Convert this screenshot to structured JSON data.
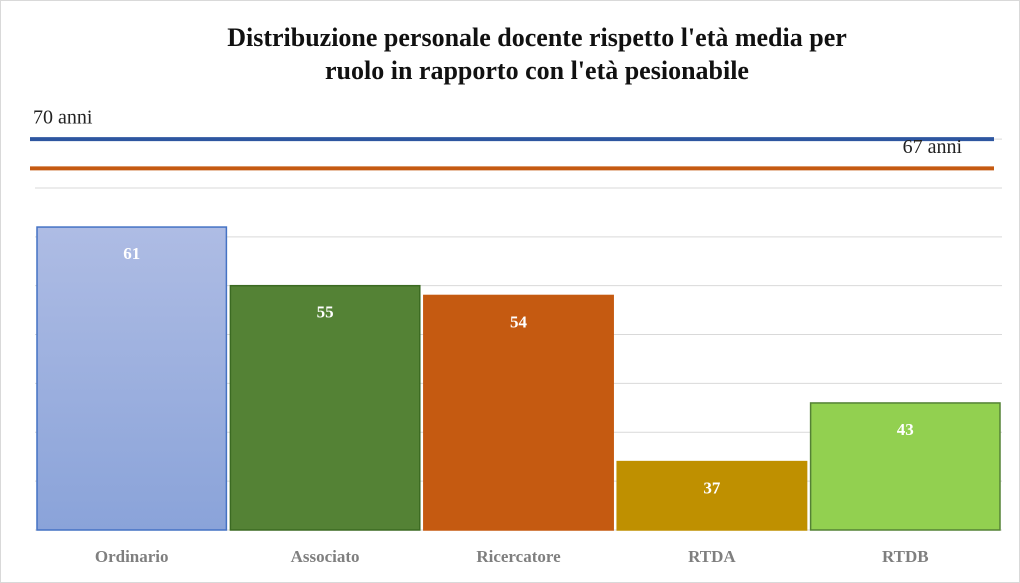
{
  "chart_data": {
    "type": "bar",
    "title": [
      "Distribuzione personale docente rispetto l'età media per",
      "ruolo in rapporto con l'età pesionabile"
    ],
    "categories": [
      "Ordinario",
      "Associato",
      "Ricercatore",
      "RTDA",
      "RTDB"
    ],
    "values": [
      61,
      55,
      54,
      37,
      43
    ],
    "colors": [
      "#9aafe0",
      "#548235",
      "#c55a11",
      "#bf9000",
      "#92d050"
    ],
    "ylim": [
      30,
      74
    ],
    "yticks": [
      35,
      40,
      45,
      50,
      55,
      60,
      65,
      70
    ],
    "grid": true,
    "reference_lines": [
      {
        "value": 70,
        "label": "70 anni",
        "color": "#2e56a0"
      },
      {
        "value": 67,
        "label": "67 anni",
        "color": "#c55a11"
      }
    ]
  }
}
